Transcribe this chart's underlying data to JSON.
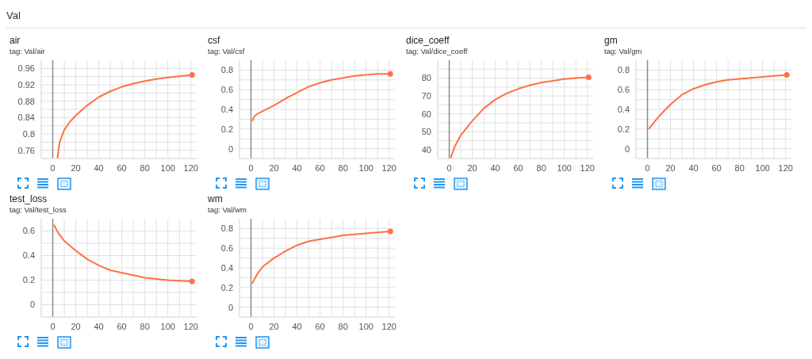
{
  "chart_data": [
    {
      "type": "line",
      "title": "air",
      "subtitle": "tag: Val/air",
      "annotations": [
        "Val"
      ],
      "grid": true,
      "xlim": [
        -10,
        125
      ],
      "ylim": [
        0.74,
        0.98
      ],
      "xticks": [
        {
          "value": -10,
          "label": null
        },
        0,
        {
          "value": 10,
          "label": null
        },
        20,
        {
          "value": 30,
          "label": null
        },
        40,
        {
          "value": 50,
          "label": null
        },
        60,
        {
          "value": 70,
          "label": null
        },
        80,
        {
          "value": 90,
          "label": null
        },
        100,
        {
          "value": 110,
          "label": null
        },
        120
      ],
      "yticks": [
        {
          "value": 0.74,
          "label": null
        },
        0.76,
        {
          "value": 0.78,
          "label": null
        },
        0.8,
        {
          "value": 0.82,
          "label": null
        },
        0.84,
        {
          "value": 0.86,
          "label": null
        },
        0.88,
        {
          "value": 0.9,
          "label": null
        },
        0.92,
        {
          "value": 0.94,
          "label": null
        },
        0.96
      ],
      "ref_lines": [
        {
          "axis": "x",
          "value": 0
        }
      ],
      "x": [
        4,
        6,
        10,
        15,
        20,
        30,
        40,
        50,
        60,
        70,
        80,
        90,
        100,
        110,
        121
      ],
      "series": [
        {
          "color": "#ff7043",
          "values": [
            0.74,
            0.78,
            0.81,
            0.83,
            0.845,
            0.87,
            0.89,
            0.904,
            0.915,
            0.923,
            0.929,
            0.934,
            0.938,
            0.941,
            0.944
          ]
        }
      ]
    },
    {
      "type": "line",
      "title": "csf",
      "subtitle": "tag: Val/csf",
      "grid": true,
      "xlim": [
        -10,
        125
      ],
      "ylim": [
        -0.1,
        0.9
      ],
      "xticks": [
        {
          "value": -10,
          "label": null
        },
        0,
        {
          "value": 10,
          "label": null
        },
        20,
        {
          "value": 30,
          "label": null
        },
        40,
        {
          "value": 50,
          "label": null
        },
        60,
        {
          "value": 70,
          "label": null
        },
        80,
        {
          "value": 90,
          "label": null
        },
        100,
        {
          "value": 110,
          "label": null
        },
        120
      ],
      "yticks": [
        {
          "value": -0.1,
          "label": null
        },
        0,
        {
          "value": 0.1,
          "label": null
        },
        0.2,
        {
          "value": 0.3,
          "label": null
        },
        0.4,
        {
          "value": 0.5,
          "label": null
        },
        0.6,
        {
          "value": 0.7,
          "label": null
        },
        0.8
      ],
      "ref_lines": [
        {
          "axis": "x",
          "value": 0
        }
      ],
      "x": [
        1,
        3,
        5,
        10,
        20,
        30,
        40,
        50,
        60,
        70,
        80,
        90,
        100,
        110,
        121
      ],
      "series": [
        {
          "color": "#ff7043",
          "values": [
            0.28,
            0.33,
            0.35,
            0.38,
            0.44,
            0.51,
            0.57,
            0.63,
            0.67,
            0.7,
            0.72,
            0.74,
            0.75,
            0.76,
            0.76
          ]
        }
      ]
    },
    {
      "type": "line",
      "title": "dice_coeff",
      "subtitle": "tag: Val/dice_coeff",
      "grid": true,
      "xlim": [
        -10,
        125
      ],
      "ylim": [
        35,
        90
      ],
      "xticks": [
        {
          "value": -10,
          "label": null
        },
        0,
        {
          "value": 10,
          "label": null
        },
        20,
        {
          "value": 30,
          "label": null
        },
        40,
        {
          "value": 50,
          "label": null
        },
        60,
        {
          "value": 70,
          "label": null
        },
        80,
        {
          "value": 90,
          "label": null
        },
        100,
        {
          "value": 110,
          "label": null
        },
        120
      ],
      "yticks": [
        {
          "value": 35,
          "label": null
        },
        40,
        {
          "value": 45,
          "label": null
        },
        50,
        {
          "value": 55,
          "label": null
        },
        60,
        {
          "value": 65,
          "label": null
        },
        70,
        {
          "value": 75,
          "label": null
        },
        80,
        {
          "value": 85,
          "label": null
        }
      ],
      "ref_lines": [
        {
          "axis": "x",
          "value": 0
        }
      ],
      "x": [
        1,
        5,
        10,
        20,
        30,
        40,
        50,
        60,
        70,
        80,
        90,
        100,
        110,
        121
      ],
      "series": [
        {
          "color": "#ff7043",
          "values": [
            35,
            42,
            48,
            56,
            63,
            68,
            71.5,
            74,
            76,
            77.5,
            78.5,
            79.5,
            80,
            80.5
          ]
        }
      ]
    },
    {
      "type": "line",
      "title": "gm",
      "subtitle": "tag: Val/gm",
      "grid": true,
      "xlim": [
        -10,
        125
      ],
      "ylim": [
        -0.1,
        0.9
      ],
      "xticks": [
        {
          "value": -10,
          "label": null
        },
        0,
        {
          "value": 10,
          "label": null
        },
        20,
        {
          "value": 30,
          "label": null
        },
        40,
        {
          "value": 50,
          "label": null
        },
        60,
        {
          "value": 70,
          "label": null
        },
        80,
        {
          "value": 90,
          "label": null
        },
        100,
        {
          "value": 110,
          "label": null
        },
        120
      ],
      "yticks": [
        {
          "value": -0.1,
          "label": null
        },
        0,
        {
          "value": 0.1,
          "label": null
        },
        0.2,
        {
          "value": 0.3,
          "label": null
        },
        0.4,
        {
          "value": 0.5,
          "label": null
        },
        0.6,
        {
          "value": 0.7,
          "label": null
        },
        0.8
      ],
      "ref_lines": [
        {
          "axis": "x",
          "value": 0
        }
      ],
      "x": [
        1,
        10,
        20,
        30,
        40,
        50,
        60,
        70,
        80,
        90,
        100,
        110,
        121
      ],
      "series": [
        {
          "color": "#ff7043",
          "values": [
            0.2,
            0.33,
            0.45,
            0.55,
            0.61,
            0.65,
            0.68,
            0.7,
            0.71,
            0.72,
            0.73,
            0.74,
            0.75
          ]
        }
      ]
    },
    {
      "type": "line",
      "title": "test_loss",
      "subtitle": "tag: Val/test_loss",
      "grid": true,
      "xlim": [
        -10,
        125
      ],
      "ylim": [
        -0.1,
        0.7
      ],
      "xticks": [
        {
          "value": -10,
          "label": null
        },
        0,
        {
          "value": 10,
          "label": null
        },
        20,
        {
          "value": 30,
          "label": null
        },
        40,
        {
          "value": 50,
          "label": null
        },
        60,
        {
          "value": 70,
          "label": null
        },
        80,
        {
          "value": 90,
          "label": null
        },
        100,
        {
          "value": 110,
          "label": null
        },
        120
      ],
      "yticks": [
        {
          "value": -0.1,
          "label": null
        },
        0,
        {
          "value": 0.1,
          "label": null
        },
        0.2,
        {
          "value": 0.3,
          "label": null
        },
        0.4,
        {
          "value": 0.5,
          "label": null
        },
        0.6
      ],
      "ref_lines": [
        {
          "axis": "x",
          "value": 0
        }
      ],
      "x": [
        1,
        5,
        10,
        20,
        30,
        40,
        50,
        60,
        70,
        80,
        90,
        100,
        110,
        121
      ],
      "series": [
        {
          "color": "#ff7043",
          "values": [
            0.65,
            0.58,
            0.52,
            0.44,
            0.37,
            0.32,
            0.28,
            0.26,
            0.24,
            0.22,
            0.21,
            0.2,
            0.195,
            0.19
          ]
        }
      ]
    },
    {
      "type": "line",
      "title": "wm",
      "subtitle": "tag: Val/wm",
      "grid": true,
      "xlim": [
        -10,
        125
      ],
      "ylim": [
        -0.1,
        0.9
      ],
      "xticks": [
        {
          "value": -10,
          "label": null
        },
        0,
        {
          "value": 10,
          "label": null
        },
        20,
        {
          "value": 30,
          "label": null
        },
        40,
        {
          "value": 50,
          "label": null
        },
        60,
        {
          "value": 70,
          "label": null
        },
        80,
        {
          "value": 90,
          "label": null
        },
        100,
        {
          "value": 110,
          "label": null
        },
        120
      ],
      "yticks": [
        {
          "value": -0.1,
          "label": null
        },
        0,
        {
          "value": 0.1,
          "label": null
        },
        0.2,
        {
          "value": 0.3,
          "label": null
        },
        0.4,
        {
          "value": 0.5,
          "label": null
        },
        0.6,
        {
          "value": 0.7,
          "label": null
        },
        0.8
      ],
      "ref_lines": [
        {
          "axis": "x",
          "value": 0
        }
      ],
      "x": [
        1,
        5,
        10,
        20,
        30,
        40,
        50,
        60,
        70,
        80,
        90,
        100,
        110,
        121
      ],
      "series": [
        {
          "color": "#ff7043",
          "values": [
            0.24,
            0.33,
            0.41,
            0.5,
            0.57,
            0.63,
            0.67,
            0.69,
            0.71,
            0.73,
            0.74,
            0.75,
            0.76,
            0.77
          ]
        }
      ]
    }
  ]
}
